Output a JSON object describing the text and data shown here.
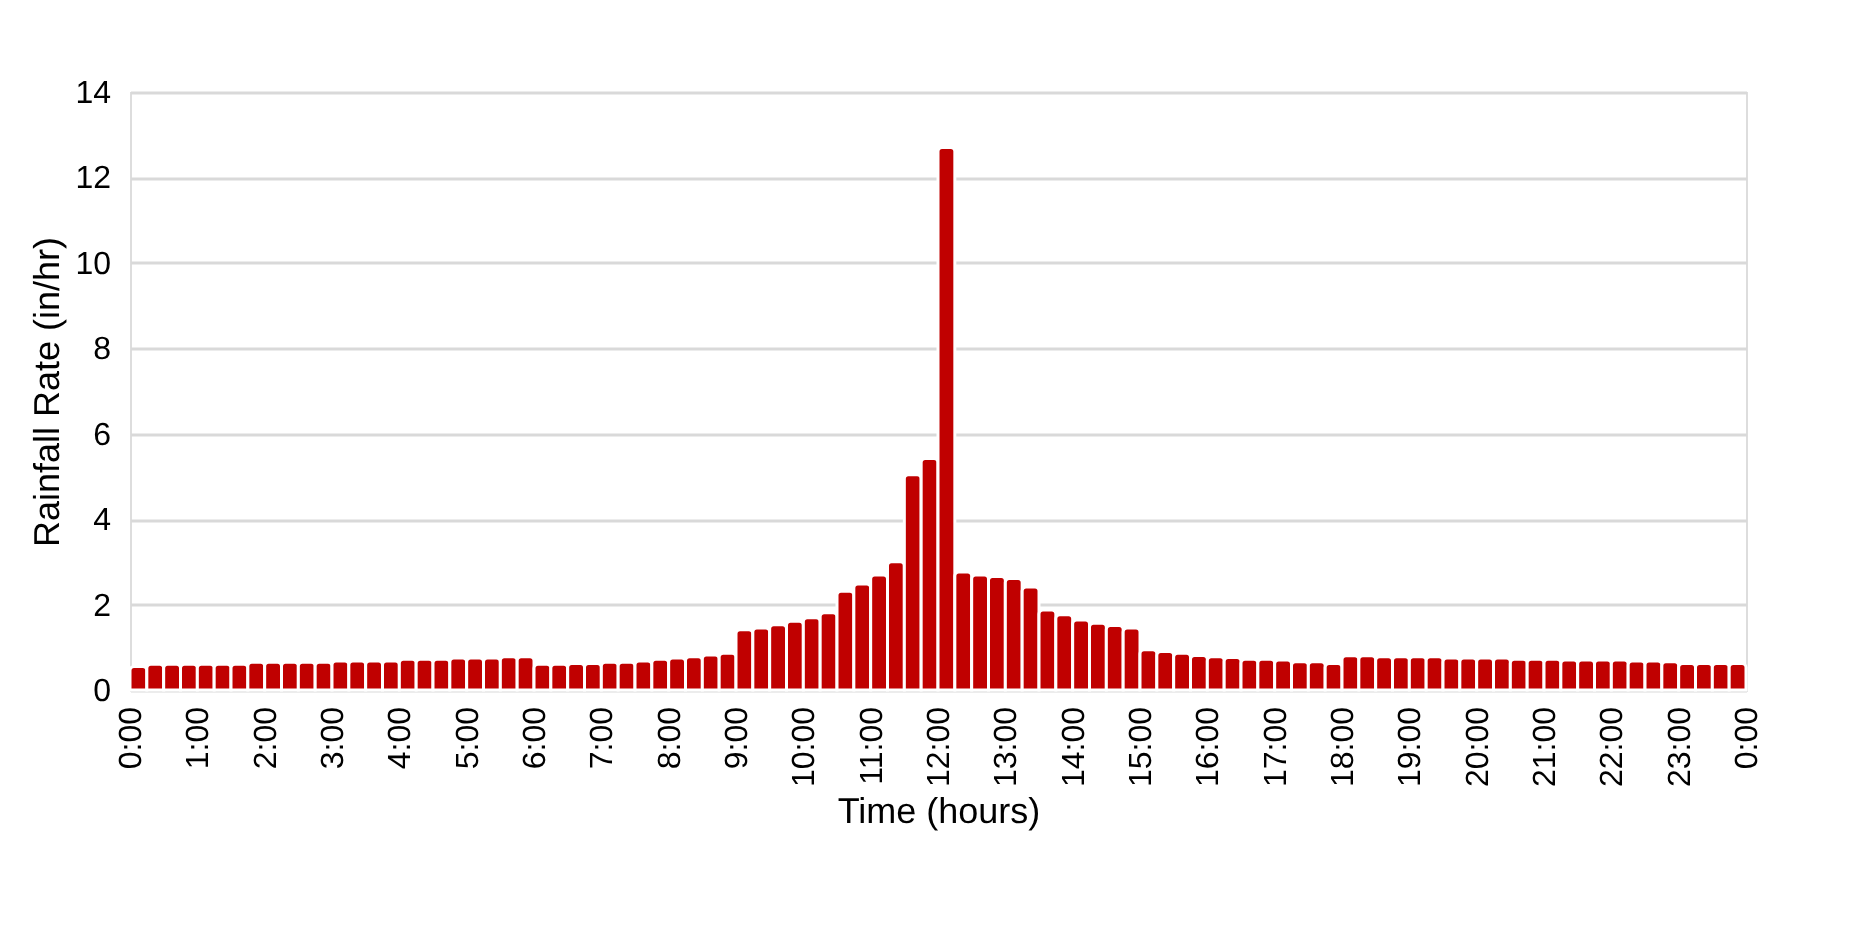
{
  "chart_data": {
    "type": "histogram",
    "xlabel": "Time (hours)",
    "ylabel": "Rainfall Rate (in/hr)",
    "color": "#c00000",
    "bins": [
      0,
      0.25,
      0.5,
      0.75,
      1,
      1.25,
      1.5,
      1.75,
      2,
      2.25,
      2.5,
      2.75,
      3,
      3.25,
      3.5,
      3.75,
      4,
      4.25,
      4.5,
      4.75,
      5,
      5.25,
      5.5,
      5.75,
      6,
      6.25,
      6.5,
      6.75,
      7,
      7.25,
      7.5,
      7.75,
      8,
      8.25,
      8.5,
      8.75,
      9,
      9.25,
      9.5,
      9.75,
      10,
      10.25,
      10.5,
      10.75,
      11,
      11.25,
      11.5,
      11.75,
      12,
      12.25,
      12.5,
      12.75,
      13,
      13.25,
      13.5,
      13.75,
      14,
      14.25,
      14.5,
      14.75,
      15,
      15.25,
      15.5,
      15.75,
      16,
      16.25,
      16.5,
      16.75,
      17,
      17.25,
      17.5,
      17.75,
      18,
      18.25,
      18.5,
      18.75,
      19,
      19.25,
      19.5,
      19.75,
      20,
      20.25,
      20.5,
      20.75,
      21,
      21.25,
      21.5,
      21.75,
      22,
      22.25,
      22.5,
      22.75,
      23,
      23.25,
      23.5,
      23.75,
      24
    ],
    "values": [
      0.55,
      0.6,
      0.6,
      0.6,
      0.6,
      0.6,
      0.6,
      0.65,
      0.65,
      0.65,
      0.65,
      0.65,
      0.68,
      0.68,
      0.68,
      0.68,
      0.72,
      0.72,
      0.72,
      0.75,
      0.75,
      0.75,
      0.78,
      0.78,
      0.6,
      0.6,
      0.62,
      0.62,
      0.65,
      0.65,
      0.68,
      0.72,
      0.75,
      0.78,
      0.82,
      0.86,
      1.41,
      1.45,
      1.53,
      1.61,
      1.69,
      1.81,
      2.31,
      2.48,
      2.69,
      3.0,
      5.04,
      5.42,
      12.7,
      2.76,
      2.69,
      2.66,
      2.61,
      2.41,
      1.87,
      1.76,
      1.64,
      1.56,
      1.51,
      1.45,
      0.94,
      0.9,
      0.86,
      0.81,
      0.78,
      0.76,
      0.72,
      0.72,
      0.7,
      0.66,
      0.66,
      0.62,
      0.8,
      0.8,
      0.78,
      0.78,
      0.78,
      0.78,
      0.75,
      0.75,
      0.75,
      0.75,
      0.72,
      0.72,
      0.72,
      0.7,
      0.7,
      0.7,
      0.7,
      0.68,
      0.68,
      0.66,
      0.62,
      0.62,
      0.62,
      0.62
    ],
    "xlim": [
      0,
      24
    ],
    "xticks": [
      {
        "value": 0,
        "label": "0:00"
      },
      {
        "value": 1,
        "label": "1:00"
      },
      {
        "value": 2,
        "label": "2:00"
      },
      {
        "value": 3,
        "label": "3:00"
      },
      {
        "value": 4,
        "label": "4:00"
      },
      {
        "value": 5,
        "label": "5:00"
      },
      {
        "value": 6,
        "label": "6:00"
      },
      {
        "value": 7,
        "label": "7:00"
      },
      {
        "value": 8,
        "label": "8:00"
      },
      {
        "value": 9,
        "label": "9:00"
      },
      {
        "value": 10,
        "label": "10:00"
      },
      {
        "value": 11,
        "label": "11:00"
      },
      {
        "value": 12,
        "label": "12:00"
      },
      {
        "value": 13,
        "label": "13:00"
      },
      {
        "value": 14,
        "label": "14:00"
      },
      {
        "value": 15,
        "label": "15:00"
      },
      {
        "value": 16,
        "label": "16:00"
      },
      {
        "value": 17,
        "label": "17:00"
      },
      {
        "value": 18,
        "label": "18:00"
      },
      {
        "value": 19,
        "label": "19:00"
      },
      {
        "value": 20,
        "label": "20:00"
      },
      {
        "value": 21,
        "label": "21:00"
      },
      {
        "value": 22,
        "label": "22:00"
      },
      {
        "value": 23,
        "label": "23:00"
      },
      {
        "value": 24,
        "label": "0:00"
      }
    ],
    "ylim": [
      0,
      14
    ],
    "yticks": [
      0,
      2,
      4,
      6,
      8,
      10,
      12,
      14
    ],
    "grid": "y"
  }
}
